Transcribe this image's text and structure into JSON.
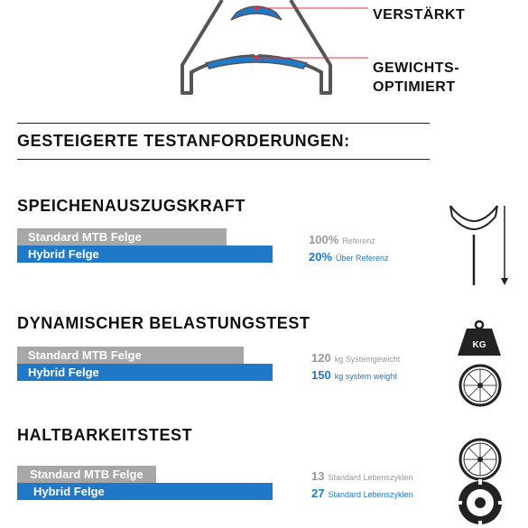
{
  "rim": {
    "label_reinforced": "VERSTÄRKT",
    "label_weight_1": "GEWICHTS-",
    "label_weight_2": "OPTIMIERT"
  },
  "main_heading": "GESTEIGERTE TESTANFORDERUNGEN:",
  "sections": [
    {
      "title": "SPEICHENAUSZUGSKRAFT",
      "standard_label": "Standard MTB Felge",
      "hybrid_label": "Hybrid Felge",
      "standard_value": "100%",
      "standard_unit": "Referenz",
      "hybrid_value": "20%",
      "hybrid_unit": "Über Referenz",
      "standard_fraction": 0.81,
      "hybrid_fraction": 1.0
    },
    {
      "title": "DYNAMISCHER BELASTUNGSTEST",
      "standard_label": "Standard MTB Felge",
      "hybrid_label": "Hybrid Felge",
      "standard_value": "120",
      "standard_unit": "kg Systemgewicht",
      "hybrid_value": "150",
      "hybrid_unit": "kg system weight",
      "standard_fraction": 0.88,
      "hybrid_fraction": 1.0
    },
    {
      "title": "HALTBARKEITSTEST",
      "standard_label": "Standard MTB Felge",
      "hybrid_label": "Hybrid Felge",
      "standard_value": "13",
      "standard_unit": "Standard Lebenszyklen",
      "hybrid_value": "27",
      "hybrid_unit": "Standard Lebenszyklen",
      "standard_fraction": 0.54,
      "hybrid_fraction": 1.0
    }
  ],
  "icons": {
    "weight_label": "KG"
  },
  "colors": {
    "blue": "#1f78c8",
    "gray": "#a7a7a7",
    "red": "#e0303a",
    "outline": "#555555"
  }
}
